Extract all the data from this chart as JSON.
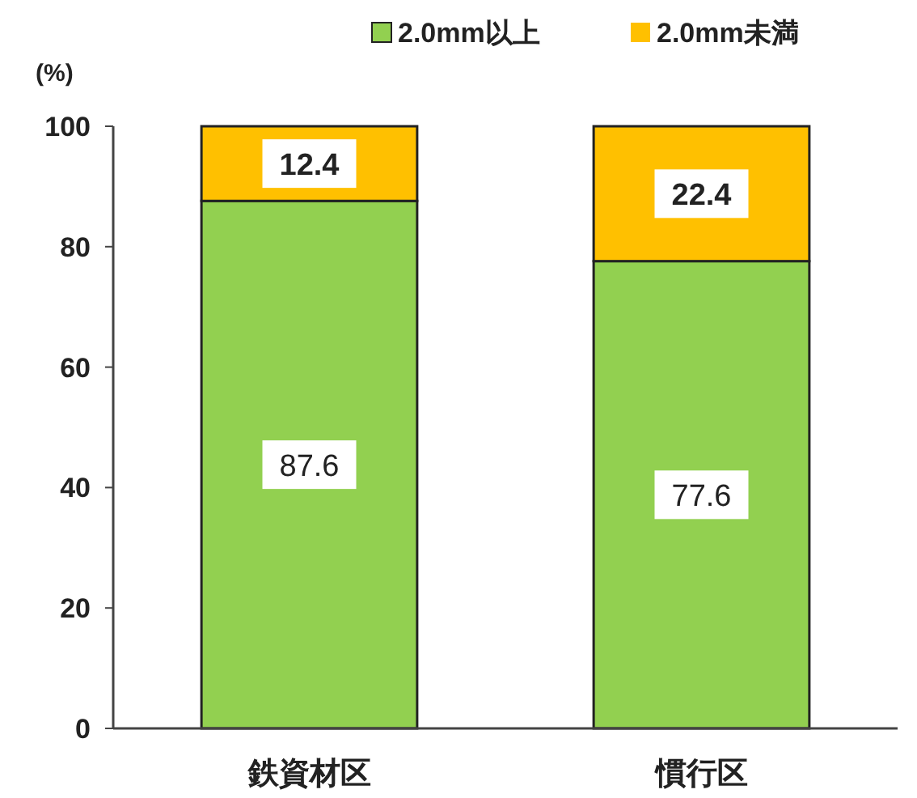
{
  "chart_data": {
    "type": "bar",
    "stacked": true,
    "ylabel": "(%)",
    "categories": [
      "鉄資材区",
      "慣行区"
    ],
    "series": [
      {
        "name": "2.0mm以上",
        "color": "#92d050",
        "values": [
          87.6,
          77.6
        ]
      },
      {
        "name": "2.0mm未満",
        "color": "#ffc000",
        "values": [
          12.4,
          22.4
        ]
      }
    ],
    "ylim": [
      0,
      100
    ],
    "yticks": [
      0,
      20,
      40,
      60,
      80,
      100
    ],
    "data_labels": true,
    "legend": "top"
  }
}
